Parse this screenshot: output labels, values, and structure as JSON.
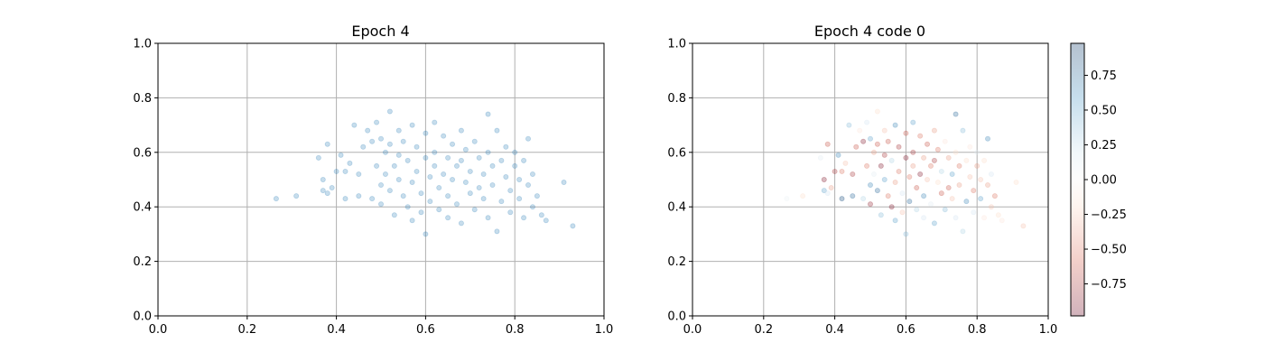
{
  "chart_data": [
    {
      "type": "scatter",
      "title": "Epoch 4",
      "xlabel": "",
      "ylabel": "",
      "xlim": [
        0.0,
        1.0
      ],
      "ylim": [
        0.0,
        1.0
      ],
      "xticks": [
        "0.0",
        "0.2",
        "0.4",
        "0.6",
        "0.8",
        "1.0"
      ],
      "yticks": [
        "0.0",
        "0.2",
        "0.4",
        "0.6",
        "0.8",
        "1.0"
      ],
      "grid": true,
      "marker_color": "#1f77b4",
      "marker_alpha": 0.25,
      "points": [
        [
          0.265,
          0.43
        ],
        [
          0.31,
          0.44
        ],
        [
          0.36,
          0.58
        ],
        [
          0.37,
          0.5
        ],
        [
          0.37,
          0.46
        ],
        [
          0.38,
          0.63
        ],
        [
          0.38,
          0.45
        ],
        [
          0.39,
          0.47
        ],
        [
          0.4,
          0.53
        ],
        [
          0.41,
          0.59
        ],
        [
          0.42,
          0.53
        ],
        [
          0.42,
          0.43
        ],
        [
          0.43,
          0.56
        ],
        [
          0.44,
          0.7
        ],
        [
          0.45,
          0.52
        ],
        [
          0.45,
          0.44
        ],
        [
          0.46,
          0.62
        ],
        [
          0.47,
          0.68
        ],
        [
          0.48,
          0.43
        ],
        [
          0.48,
          0.64
        ],
        [
          0.49,
          0.71
        ],
        [
          0.49,
          0.55
        ],
        [
          0.5,
          0.65
        ],
        [
          0.5,
          0.41
        ],
        [
          0.5,
          0.48
        ],
        [
          0.51,
          0.6
        ],
        [
          0.51,
          0.52
        ],
        [
          0.52,
          0.75
        ],
        [
          0.52,
          0.63
        ],
        [
          0.52,
          0.46
        ],
        [
          0.53,
          0.55
        ],
        [
          0.53,
          0.37
        ],
        [
          0.54,
          0.68
        ],
        [
          0.54,
          0.59
        ],
        [
          0.54,
          0.5
        ],
        [
          0.55,
          0.44
        ],
        [
          0.55,
          0.64
        ],
        [
          0.56,
          0.57
        ],
        [
          0.56,
          0.4
        ],
        [
          0.57,
          0.49
        ],
        [
          0.57,
          0.7
        ],
        [
          0.57,
          0.35
        ],
        [
          0.58,
          0.62
        ],
        [
          0.58,
          0.53
        ],
        [
          0.59,
          0.45
        ],
        [
          0.59,
          0.38
        ],
        [
          0.6,
          0.67
        ],
        [
          0.6,
          0.58
        ],
        [
          0.6,
          0.3
        ],
        [
          0.61,
          0.51
        ],
        [
          0.61,
          0.42
        ],
        [
          0.62,
          0.71
        ],
        [
          0.62,
          0.6
        ],
        [
          0.62,
          0.55
        ],
        [
          0.63,
          0.47
        ],
        [
          0.63,
          0.39
        ],
        [
          0.64,
          0.66
        ],
        [
          0.64,
          0.52
        ],
        [
          0.65,
          0.58
        ],
        [
          0.65,
          0.44
        ],
        [
          0.65,
          0.36
        ],
        [
          0.66,
          0.63
        ],
        [
          0.66,
          0.5
        ],
        [
          0.67,
          0.55
        ],
        [
          0.67,
          0.41
        ],
        [
          0.68,
          0.68
        ],
        [
          0.68,
          0.57
        ],
        [
          0.68,
          0.34
        ],
        [
          0.69,
          0.49
        ],
        [
          0.69,
          0.61
        ],
        [
          0.7,
          0.45
        ],
        [
          0.7,
          0.53
        ],
        [
          0.71,
          0.39
        ],
        [
          0.71,
          0.64
        ],
        [
          0.72,
          0.58
        ],
        [
          0.72,
          0.47
        ],
        [
          0.73,
          0.52
        ],
        [
          0.73,
          0.43
        ],
        [
          0.74,
          0.74
        ],
        [
          0.74,
          0.6
        ],
        [
          0.74,
          0.36
        ],
        [
          0.75,
          0.55
        ],
        [
          0.75,
          0.48
        ],
        [
          0.76,
          0.68
        ],
        [
          0.76,
          0.31
        ],
        [
          0.77,
          0.57
        ],
        [
          0.77,
          0.42
        ],
        [
          0.78,
          0.51
        ],
        [
          0.78,
          0.62
        ],
        [
          0.79,
          0.46
        ],
        [
          0.79,
          0.38
        ],
        [
          0.8,
          0.55
        ],
        [
          0.8,
          0.6
        ],
        [
          0.81,
          0.5
        ],
        [
          0.81,
          0.43
        ],
        [
          0.82,
          0.57
        ],
        [
          0.82,
          0.36
        ],
        [
          0.83,
          0.65
        ],
        [
          0.83,
          0.48
        ],
        [
          0.84,
          0.52
        ],
        [
          0.84,
          0.4
        ],
        [
          0.85,
          0.44
        ],
        [
          0.86,
          0.37
        ],
        [
          0.87,
          0.35
        ],
        [
          0.91,
          0.49
        ],
        [
          0.93,
          0.33
        ]
      ]
    },
    {
      "type": "scatter",
      "title": "Epoch 4 code 0",
      "xlabel": "",
      "ylabel": "",
      "xlim": [
        0.0,
        1.0
      ],
      "ylim": [
        0.0,
        1.0
      ],
      "xticks": [
        "0.0",
        "0.2",
        "0.4",
        "0.6",
        "0.8",
        "1.0"
      ],
      "yticks": [
        "0.0",
        "0.2",
        "0.4",
        "0.6",
        "0.8",
        "1.0"
      ],
      "grid": true,
      "marker_alpha": 0.3,
      "colormap": "RdBu",
      "colorbar": {
        "range": [
          -0.98,
          0.98
        ],
        "ticks": [
          "0.75",
          "0.50",
          "0.25",
          "0.00",
          "−0.25",
          "−0.50",
          "−0.75"
        ],
        "tick_values": [
          0.75,
          0.5,
          0.25,
          0.0,
          -0.25,
          -0.5,
          -0.75
        ],
        "colors": [
          "#67001f",
          "#d6604d",
          "#fddbc7",
          "#f7f7f7",
          "#d1e5f0",
          "#4393c3",
          "#053061"
        ]
      },
      "code_values": [
        0.1,
        -0.3,
        0.2,
        -0.9,
        0.6,
        -0.7,
        0.3,
        -0.5,
        -0.8,
        0.7,
        -0.6,
        0.9,
        -0.4,
        0.5,
        -0.8,
        0.8,
        -0.7,
        -0.2,
        0.4,
        -0.9,
        0.3,
        -0.6,
        0.6,
        -0.85,
        0.7,
        -0.5,
        0.2,
        -0.3,
        -0.7,
        0.8,
        -0.9,
        0.5,
        -0.4,
        -0.8,
        0.6,
        -0.6,
        -0.7,
        0.4,
        -0.9,
        -0.5,
        0.7,
        0.6,
        -0.8,
        -0.6,
        0.3,
        -0.4,
        -0.7,
        -0.9,
        0.5,
        -0.6,
        0.8,
        0.6,
        -0.8,
        -0.5,
        -0.7,
        0.4,
        -0.6,
        -0.9,
        -0.5,
        0.7,
        0.3,
        -0.7,
        -0.4,
        -0.6,
        0.2,
        -0.5,
        -0.8,
        0.6,
        -0.3,
        -0.6,
        -0.7,
        0.4,
        0.5,
        -0.2,
        -0.5,
        -0.7,
        0.6,
        -0.4,
        0.8,
        -0.3,
        0.3,
        -0.6,
        -0.5,
        0.5,
        0.4,
        -0.3,
        0.7,
        -0.4,
        -0.2,
        -0.6,
        0.3,
        -0.5,
        0.2,
        -0.4,
        0.6,
        -0.3,
        -0.2,
        0.7,
        -0.5,
        0.3,
        -0.4,
        -0.6,
        -0.3,
        -0.2,
        -0.3,
        -0.4
      ]
    }
  ]
}
